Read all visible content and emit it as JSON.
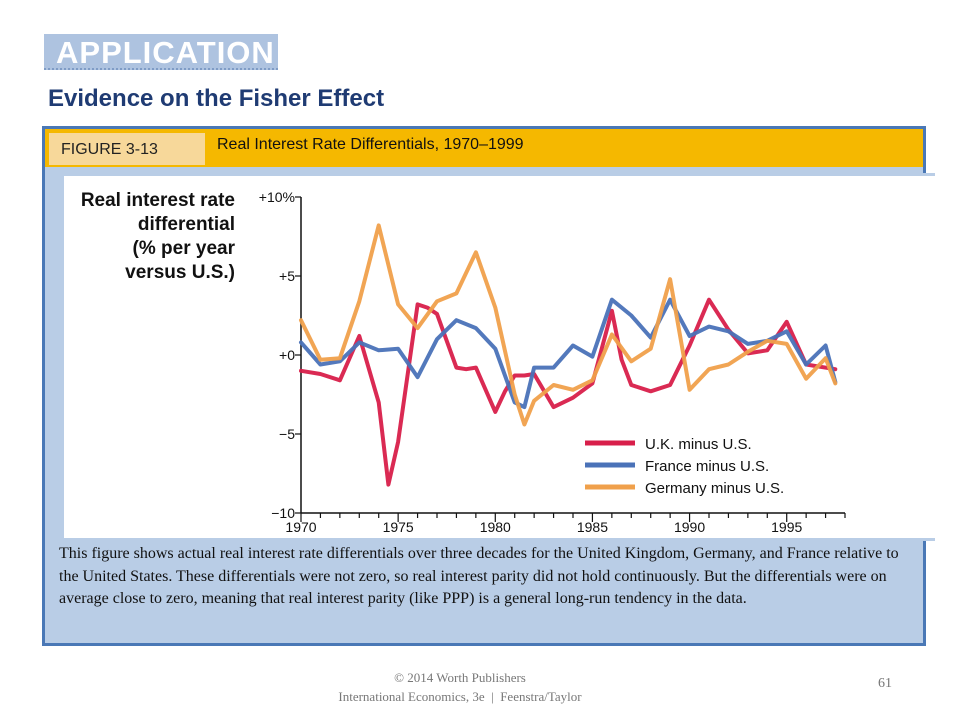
{
  "header": {
    "section_label": "APPLICATION",
    "title": "Evidence on the Fisher Effect"
  },
  "figure": {
    "label": "FIGURE 3-13",
    "title": "Real Interest Rate Differentials, 1970–1999",
    "caption": "This figure shows actual real interest rate differentials over three decades for the United Kingdom, Germany, and France relative to the United States. These differentials were not zero, so real interest parity did not hold continuously. But the differentials were on average close to zero, meaning that real interest parity (like PPP) is a general long-run tendency in the data."
  },
  "footer": {
    "copyright": "© 2014 Worth Publishers",
    "book": "International Economics, 3e  |  Feenstra/Taylor",
    "page": "61"
  },
  "chart_data": {
    "type": "line",
    "ylabel": [
      "Real interest rate",
      "differential",
      "(% per year",
      "versus U.S.)"
    ],
    "xlim": [
      1970,
      1998
    ],
    "ylim": [
      -10,
      10
    ],
    "x_ticks": [
      1970,
      1975,
      1980,
      1985,
      1990,
      1995
    ],
    "x_tick_labels": [
      "1970",
      "1975",
      "1980",
      "1985",
      "1990",
      "1995"
    ],
    "y_ticks": [
      10,
      5,
      0,
      -5,
      -10
    ],
    "y_tick_labels": [
      "+10%",
      "+5",
      "+0",
      "−5",
      "−10"
    ],
    "grid": false,
    "legend_position": "bottom-right",
    "series": [
      {
        "name": "U.K. minus U.S.",
        "color": "#d81f4a",
        "x": [
          1970,
          1971,
          1972,
          1973,
          1974,
          1974.5,
          1975,
          1976,
          1976.5,
          1977,
          1978,
          1978.5,
          1979,
          1980,
          1980.5,
          1981,
          1981.5,
          1982,
          1983,
          1984,
          1985,
          1986,
          1986.5,
          1987,
          1988,
          1989,
          1990,
          1991,
          1992,
          1993,
          1994,
          1995,
          1996,
          1997.5
        ],
        "y": [
          -1,
          -1.2,
          -1.6,
          1.2,
          -3,
          -8.2,
          -5.5,
          3.2,
          3,
          2.6,
          -0.8,
          -0.9,
          -0.8,
          -3.6,
          -2.3,
          -1.3,
          -1.3,
          -1.2,
          -3.3,
          -2.7,
          -1.8,
          2.8,
          -0.3,
          -1.9,
          -2.3,
          -1.9,
          0.6,
          3.5,
          1.6,
          0.1,
          0.3,
          2.1,
          -0.6,
          -0.9
        ]
      },
      {
        "name": "France minus U.S.",
        "color": "#4a72b8",
        "x": [
          1970,
          1971,
          1972,
          1973,
          1974,
          1975,
          1976,
          1977,
          1978,
          1979,
          1980,
          1981,
          1981.5,
          1982,
          1983,
          1984,
          1985,
          1986,
          1987,
          1988,
          1989,
          1990,
          1991,
          1992,
          1993,
          1994,
          1995,
          1996,
          1997,
          1997.5
        ],
        "y": [
          0.8,
          -0.6,
          -0.4,
          0.8,
          0.3,
          0.4,
          -1.4,
          1,
          2.2,
          1.7,
          0.4,
          -3,
          -3.3,
          -0.8,
          -0.8,
          0.6,
          -0.1,
          3.5,
          2.5,
          1.1,
          3.5,
          1.2,
          1.8,
          1.5,
          0.7,
          0.9,
          1.5,
          -0.6,
          0.6,
          -1.7
        ]
      },
      {
        "name": "Germany minus U.S.",
        "color": "#f0a04b",
        "x": [
          1970,
          1971,
          1972,
          1973,
          1974,
          1975,
          1976,
          1977,
          1978,
          1979,
          1980,
          1981,
          1981.5,
          1982,
          1983,
          1984,
          1985,
          1986,
          1987,
          1988,
          1989,
          1990,
          1991,
          1992,
          1993,
          1994,
          1995,
          1996,
          1997,
          1997.5
        ],
        "y": [
          2.2,
          -0.3,
          -0.2,
          3.4,
          8.2,
          3.2,
          1.7,
          3.4,
          3.9,
          6.5,
          3,
          -2.5,
          -4.4,
          -2.9,
          -1.9,
          -2.2,
          -1.6,
          1.3,
          -0.4,
          0.4,
          4.8,
          -2.2,
          -0.9,
          -0.6,
          0.2,
          0.9,
          0.7,
          -1.5,
          -0.2,
          -1.8
        ]
      }
    ]
  }
}
